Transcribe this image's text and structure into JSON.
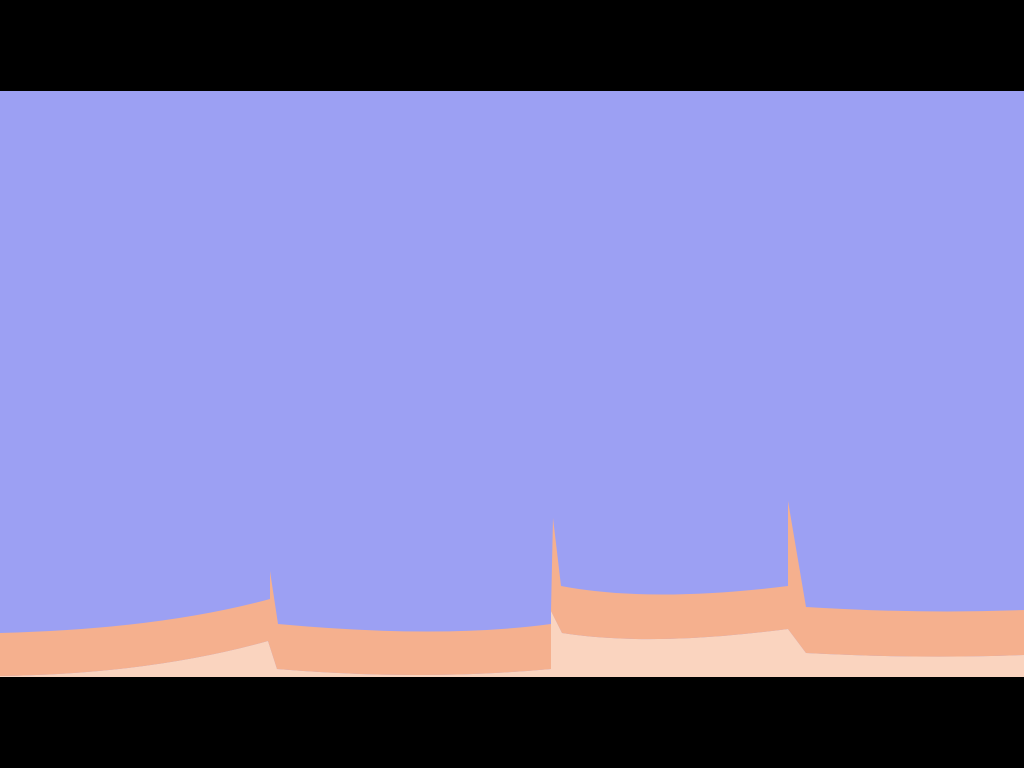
{
  "scene": {
    "description_visible_text": "",
    "colors": {
      "letterbox": "#000000",
      "sky": "#9ca0f3",
      "terrain_top": "#f5b08e",
      "terrain_face": "#fad4bf"
    },
    "terrain_segments": 4,
    "hud": {}
  }
}
